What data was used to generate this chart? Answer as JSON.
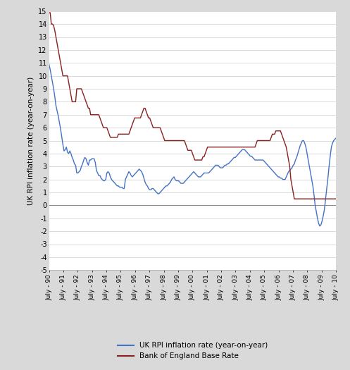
{
  "ylabel": "UK RPI inflation rate (year-on-year)",
  "ylim": [
    -5,
    15
  ],
  "yticks": [
    -5,
    -4,
    -3,
    -2,
    -1,
    0,
    1,
    2,
    3,
    4,
    5,
    6,
    7,
    8,
    9,
    10,
    11,
    12,
    13,
    14,
    15
  ],
  "rpi_color": "#4472c4",
  "boe_color": "#8B2020",
  "background_color": "#ffffff",
  "outer_background": "#d9d9d9",
  "legend_rpi": "UK RPI inflation rate (year-on-year)",
  "legend_boe": "Bank of England Base Rate",
  "x_labels": [
    "July - 90",
    "July - 91",
    "July - 92",
    "July - 93",
    "July - 94",
    "July - 95",
    "July - 96",
    "July - 97",
    "July - 98",
    "July - 99",
    "July - 00",
    "July - 01",
    "July - 02",
    "July - 03",
    "July - 04",
    "July - 05",
    "July - 06",
    "July - 07",
    "July - 08",
    "July - 09",
    "July - 10"
  ],
  "rpi_monthly": [
    10.9,
    10.5,
    10.0,
    9.5,
    9.0,
    8.4,
    7.7,
    7.3,
    6.9,
    6.4,
    5.9,
    5.3,
    4.7,
    4.2,
    4.3,
    4.5,
    4.1,
    4.0,
    4.2,
    4.0,
    3.7,
    3.5,
    3.2,
    3.1,
    2.5,
    2.5,
    2.6,
    2.7,
    3.0,
    3.2,
    3.5,
    3.7,
    3.6,
    3.3,
    3.1,
    3.5,
    3.5,
    3.6,
    3.6,
    3.6,
    3.3,
    2.7,
    2.5,
    2.3,
    2.3,
    2.1,
    2.0,
    1.9,
    1.9,
    2.0,
    2.5,
    2.6,
    2.5,
    2.2,
    2.0,
    1.9,
    1.8,
    1.7,
    1.6,
    1.5,
    1.5,
    1.4,
    1.4,
    1.4,
    1.3,
    1.3,
    2.0,
    2.2,
    2.4,
    2.6,
    2.5,
    2.3,
    2.2,
    2.3,
    2.4,
    2.5,
    2.6,
    2.7,
    2.8,
    2.7,
    2.6,
    2.4,
    2.1,
    1.8,
    1.6,
    1.5,
    1.3,
    1.2,
    1.2,
    1.3,
    1.3,
    1.2,
    1.1,
    1.0,
    0.9,
    0.9,
    1.0,
    1.1,
    1.2,
    1.3,
    1.4,
    1.5,
    1.5,
    1.6,
    1.7,
    1.8,
    2.0,
    2.1,
    2.2,
    2.0,
    1.9,
    1.9,
    1.9,
    1.8,
    1.7,
    1.7,
    1.7,
    1.8,
    1.9,
    2.0,
    2.1,
    2.2,
    2.3,
    2.4,
    2.5,
    2.6,
    2.5,
    2.4,
    2.3,
    2.2,
    2.2,
    2.2,
    2.3,
    2.4,
    2.5,
    2.5,
    2.5,
    2.5,
    2.5,
    2.6,
    2.7,
    2.8,
    2.9,
    3.0,
    3.1,
    3.1,
    3.1,
    3.0,
    2.9,
    2.9,
    2.9,
    3.0,
    3.1,
    3.1,
    3.2,
    3.2,
    3.3,
    3.4,
    3.5,
    3.6,
    3.7,
    3.7,
    3.8,
    3.9,
    4.0,
    4.1,
    4.2,
    4.3,
    4.3,
    4.3,
    4.2,
    4.1,
    4.0,
    3.9,
    3.8,
    3.8,
    3.7,
    3.6,
    3.5,
    3.5,
    3.5,
    3.5,
    3.5,
    3.5,
    3.5,
    3.5,
    3.4,
    3.3,
    3.2,
    3.1,
    3.0,
    2.9,
    2.8,
    2.7,
    2.6,
    2.5,
    2.4,
    2.3,
    2.2,
    2.2,
    2.1,
    2.1,
    2.0,
    2.0,
    2.0,
    2.2,
    2.4,
    2.6,
    2.7,
    2.8,
    2.9,
    3.1,
    3.2,
    3.5,
    3.7,
    4.0,
    4.3,
    4.6,
    4.8,
    5.0,
    5.0,
    4.8,
    4.5,
    4.0,
    3.5,
    3.0,
    2.5,
    2.0,
    1.5,
    0.8,
    0.0,
    -0.5,
    -1.0,
    -1.4,
    -1.6,
    -1.5,
    -1.2,
    -0.8,
    -0.3,
    0.5,
    1.3,
    2.1,
    3.0,
    3.8,
    4.5,
    4.8,
    5.0,
    5.1,
    5.2
  ],
  "boe_monthly": [
    14.88,
    14.88,
    14.0,
    14.0,
    13.88,
    13.5,
    13.0,
    12.5,
    12.0,
    11.5,
    11.0,
    10.5,
    10.0,
    10.0,
    10.0,
    10.0,
    10.0,
    9.5,
    9.0,
    8.5,
    8.0,
    8.0,
    8.0,
    8.0,
    9.0,
    9.0,
    9.0,
    9.0,
    9.0,
    8.75,
    8.5,
    8.25,
    8.0,
    7.75,
    7.5,
    7.5,
    7.0,
    7.0,
    7.0,
    7.0,
    7.0,
    7.0,
    7.0,
    7.0,
    6.75,
    6.5,
    6.25,
    6.0,
    6.0,
    6.0,
    6.0,
    5.75,
    5.5,
    5.25,
    5.25,
    5.25,
    5.25,
    5.25,
    5.25,
    5.25,
    5.5,
    5.5,
    5.5,
    5.5,
    5.5,
    5.5,
    5.5,
    5.5,
    5.5,
    5.5,
    5.75,
    6.0,
    6.25,
    6.5,
    6.75,
    6.75,
    6.75,
    6.75,
    6.75,
    6.75,
    7.0,
    7.25,
    7.5,
    7.5,
    7.25,
    7.0,
    6.75,
    6.75,
    6.5,
    6.25,
    6.0,
    6.0,
    6.0,
    6.0,
    6.0,
    6.0,
    6.0,
    5.75,
    5.5,
    5.25,
    5.0,
    5.0,
    5.0,
    5.0,
    5.0,
    5.0,
    5.0,
    5.0,
    5.0,
    5.0,
    5.0,
    5.0,
    5.0,
    5.0,
    5.0,
    5.0,
    5.0,
    5.0,
    4.75,
    4.5,
    4.25,
    4.25,
    4.25,
    4.25,
    4.0,
    3.75,
    3.5,
    3.5,
    3.5,
    3.5,
    3.5,
    3.5,
    3.5,
    3.75,
    3.75,
    4.0,
    4.25,
    4.5,
    4.5,
    4.5,
    4.5,
    4.5,
    4.5,
    4.5,
    4.5,
    4.5,
    4.5,
    4.5,
    4.5,
    4.5,
    4.5,
    4.5,
    4.5,
    4.5,
    4.5,
    4.5,
    4.5,
    4.5,
    4.5,
    4.5,
    4.5,
    4.5,
    4.5,
    4.5,
    4.5,
    4.5,
    4.5,
    4.5,
    4.5,
    4.5,
    4.5,
    4.5,
    4.5,
    4.5,
    4.5,
    4.5,
    4.5,
    4.5,
    4.5,
    4.75,
    5.0,
    5.0,
    5.0,
    5.0,
    5.0,
    5.0,
    5.0,
    5.0,
    5.0,
    5.0,
    5.0,
    5.0,
    5.25,
    5.5,
    5.5,
    5.5,
    5.75,
    5.75,
    5.75,
    5.75,
    5.75,
    5.5,
    5.25,
    5.0,
    4.75,
    4.5,
    4.0,
    3.5,
    3.0,
    2.0,
    1.5,
    1.0,
    0.5,
    0.5,
    0.5,
    0.5,
    0.5,
    0.5,
    0.5,
    0.5,
    0.5,
    0.5,
    0.5,
    0.5,
    0.5,
    0.5,
    0.5,
    0.5,
    0.5,
    0.5,
    0.5,
    0.5,
    0.5,
    0.5,
    0.5,
    0.5,
    0.5,
    0.5,
    0.5,
    0.5,
    0.5,
    0.5,
    0.5,
    0.5,
    0.5,
    0.5,
    0.5,
    0.5,
    0.5
  ]
}
